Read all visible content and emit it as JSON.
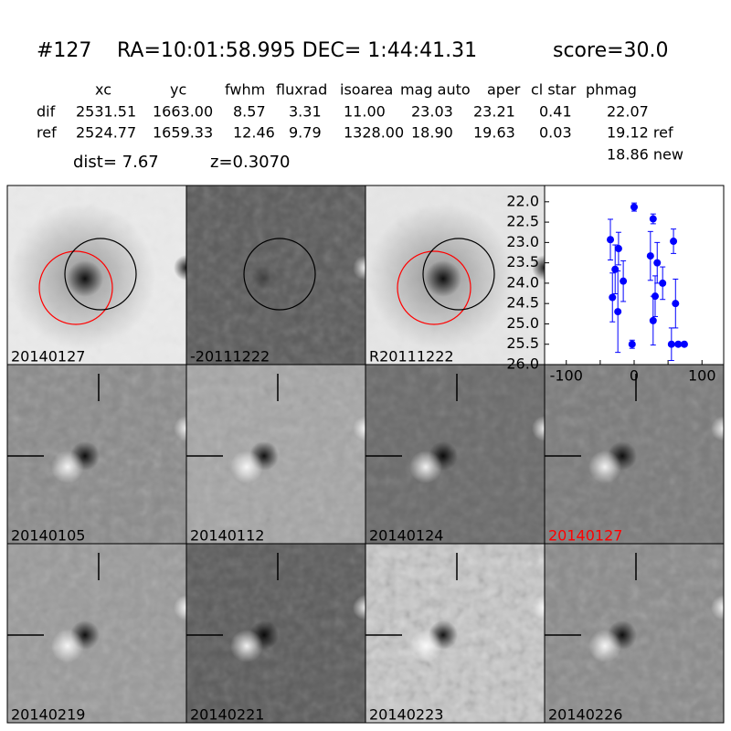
{
  "header": {
    "id": "#127",
    "coords": "RA=10:01:58.995 DEC= 1:44:41.31",
    "score": "score=30.0"
  },
  "table": {
    "columns": [
      "xc",
      "yc",
      "fwhm",
      "fluxrad",
      "isoarea",
      "mag auto",
      "aper",
      "cl star",
      "phmag"
    ],
    "rows": [
      [
        "dif",
        "2531.51",
        "1663.00",
        "8.57",
        "3.31",
        "11.00",
        "23.03",
        "23.21",
        "0.41",
        "22.07"
      ],
      [
        "ref",
        "2524.77",
        "1659.33",
        "12.46",
        "9.79",
        "1328.00",
        "18.90",
        "19.63",
        "0.03",
        "19.12 ref"
      ]
    ],
    "new_mag": "18.86 new"
  },
  "dist": "dist=  7.67",
  "z": "z=0.3070",
  "stamps": [
    {
      "label": "20140127"
    },
    {
      "label": "-20111222"
    },
    {
      "label": "R20111222"
    },
    {
      "label": "20140105"
    },
    {
      "label": "20140112"
    },
    {
      "label": "20140124"
    },
    {
      "label": "20140127",
      "label_color": "#ff0000"
    },
    {
      "label": "20140219"
    },
    {
      "label": "20140221"
    },
    {
      "label": "20140223"
    },
    {
      "label": "20140226"
    }
  ],
  "chart_data": {
    "type": "scatter",
    "color": "#0000ff",
    "x": [
      -35,
      -32,
      -28,
      -24,
      -23,
      -16,
      -3,
      0,
      24,
      28,
      28,
      31,
      34,
      42,
      58,
      61,
      55,
      65,
      74
    ],
    "values": [
      22.93,
      24.35,
      23.66,
      24.7,
      23.15,
      23.95,
      25.5,
      22.13,
      23.33,
      22.42,
      24.92,
      24.32,
      23.5,
      24.0,
      22.97,
      24.5,
      25.5,
      25.5,
      25.5
    ],
    "errors": [
      0.5,
      0.6,
      0.6,
      1.0,
      0.4,
      0.5,
      0.1,
      0.1,
      0.6,
      0.12,
      0.6,
      0.5,
      0.5,
      0.4,
      0.3,
      0.6,
      0.4,
      0.05,
      0.05
    ],
    "xlim": [
      -132,
      132
    ],
    "xticks": [
      -100,
      -50,
      0,
      50,
      100
    ],
    "ylim": [
      21.6,
      26.0
    ],
    "invert_y": true,
    "yticks": [
      {
        "value": 22,
        "label": "22.0"
      },
      {
        "value": 22.5,
        "label": "22.5"
      },
      {
        "value": 23,
        "label": "23.0"
      },
      {
        "value": 23.5,
        "label": "23.5"
      },
      {
        "value": 24,
        "label": "24.0"
      },
      {
        "value": 24.5,
        "label": "24.5"
      },
      {
        "value": 25,
        "label": "25.0"
      },
      {
        "value": 25.5,
        "label": "25.5"
      },
      {
        "value": 26,
        "label": "26.0"
      }
    ]
  }
}
